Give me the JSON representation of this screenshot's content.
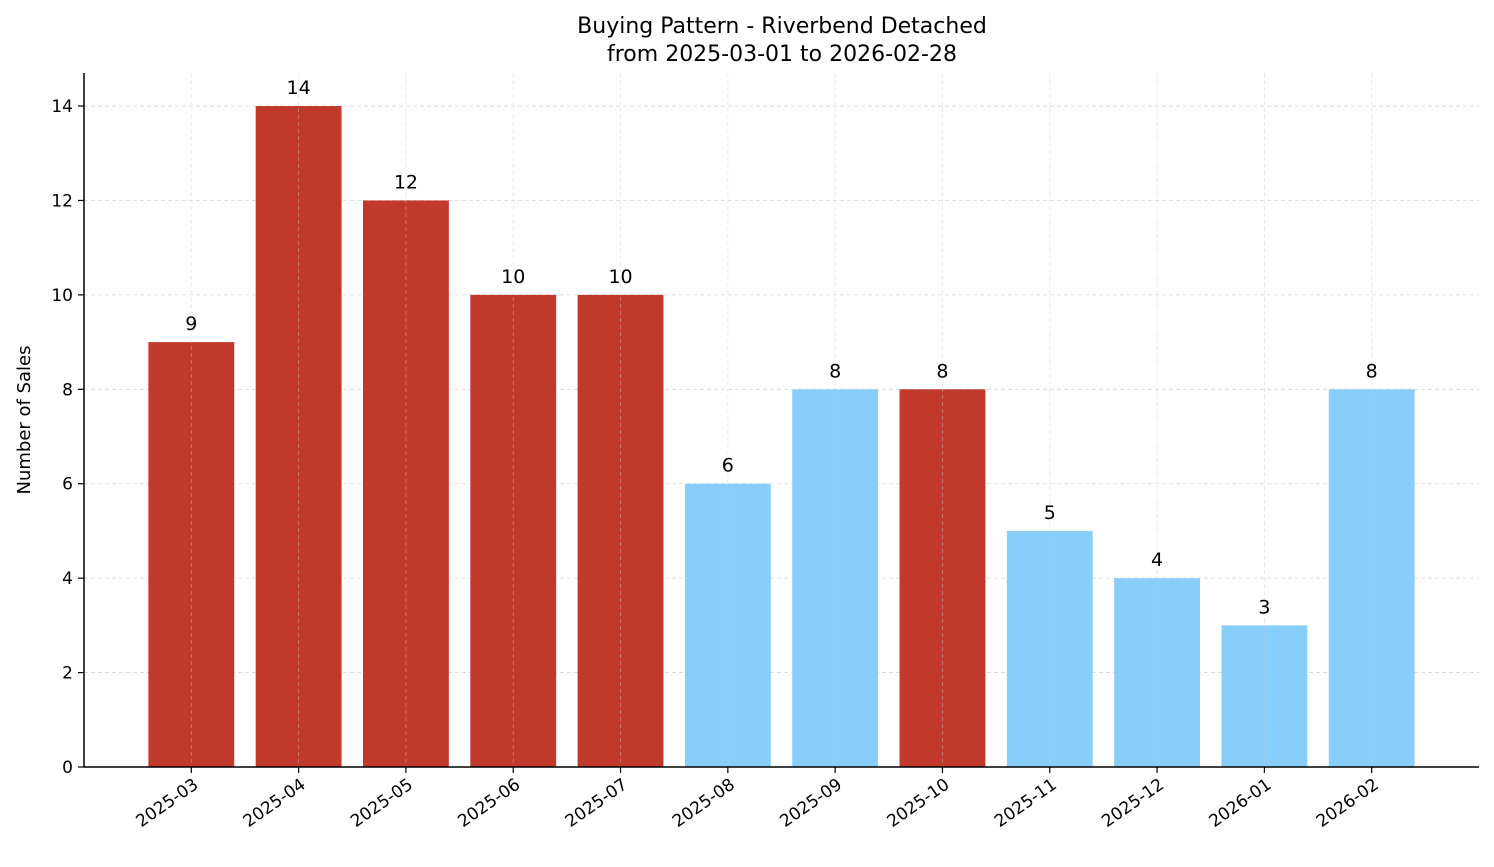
{
  "chart_data": {
    "type": "bar",
    "title": "Buying Pattern - Riverbend Detached",
    "subtitle": "from 2025-03-01 to 2026-02-28",
    "xlabel": "",
    "ylabel": "Number of Sales",
    "categories": [
      "2025-03",
      "2025-04",
      "2025-05",
      "2025-06",
      "2025-07",
      "2025-08",
      "2025-09",
      "2025-10",
      "2025-11",
      "2025-12",
      "2026-01",
      "2026-02"
    ],
    "values": [
      9,
      14,
      12,
      10,
      10,
      6,
      8,
      8,
      5,
      4,
      3,
      8
    ],
    "bar_colors": [
      "#c0392b",
      "#c0392b",
      "#c0392b",
      "#c0392b",
      "#c0392b",
      "#87cefa",
      "#87cefa",
      "#c0392b",
      "#87cefa",
      "#87cefa",
      "#87cefa",
      "#87cefa"
    ],
    "ylim": [
      0,
      14.7
    ],
    "yticks": [
      0,
      2,
      4,
      6,
      8,
      10,
      12,
      14
    ],
    "grid": true,
    "data_labels": true,
    "legend": "none"
  }
}
